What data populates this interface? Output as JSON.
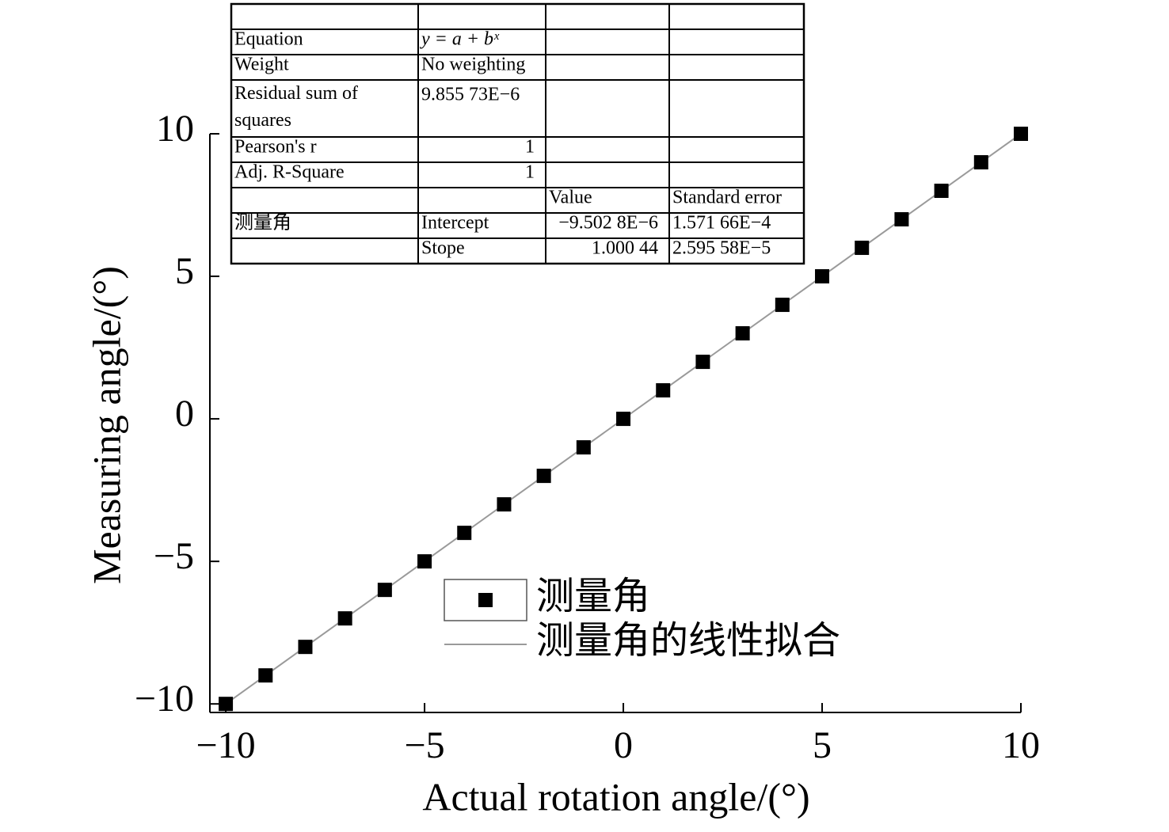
{
  "chart_data": {
    "type": "scatter",
    "x_label": "Actual rotation angle/(°)",
    "y_label": "Measuring angle/(°)",
    "x": [
      -10,
      -9,
      -8,
      -7,
      -6,
      -5,
      -4,
      -3,
      -2,
      -1,
      0,
      1,
      2,
      3,
      4,
      5,
      6,
      7,
      8,
      9,
      10
    ],
    "series": [
      {
        "name": "测量角",
        "color": "#000000",
        "marker": "square",
        "values": [
          -10,
          -9,
          -8,
          -7,
          -6,
          -5,
          -4,
          -3,
          -2,
          -1,
          0,
          1,
          2,
          3,
          4,
          5,
          6,
          7,
          8,
          9,
          10
        ]
      },
      {
        "name": "测量角的线性拟合",
        "color": "#9a9a9a",
        "marker": "line",
        "x": [
          -10,
          10
        ],
        "values": [
          -10,
          10
        ]
      }
    ],
    "xlim": [
      -10.4,
      10
    ],
    "ylim": [
      -10.3,
      10
    ],
    "xticks": [
      {
        "value": -10,
        "label": "−10"
      },
      {
        "value": -5,
        "label": "−5"
      },
      0,
      5,
      10
    ],
    "yticks": [
      {
        "value": -10,
        "label": "−10"
      },
      {
        "value": -5,
        "label": "−5"
      },
      0,
      5,
      10
    ],
    "grid": false,
    "table": {
      "rows": [
        [
          null,
          null,
          null,
          null
        ],
        [
          "Equation",
          "y = a + bˣ",
          null,
          null
        ],
        [
          "Weight",
          "No weighting",
          null,
          null
        ],
        [
          "Residual sum of squares",
          "9.855 73E−6",
          null,
          null
        ],
        [
          "Pearson's r",
          "1",
          null,
          null
        ],
        [
          "Adj. R-Square",
          "1",
          null,
          null
        ],
        [
          null,
          null,
          "Value",
          "Standard error"
        ],
        [
          "测量角",
          "Intercept",
          "−9.502 8E−6",
          "1.571 66E−4"
        ],
        [
          null,
          "Stope",
          "1.000 44",
          "2.595 58E−5"
        ]
      ]
    }
  }
}
